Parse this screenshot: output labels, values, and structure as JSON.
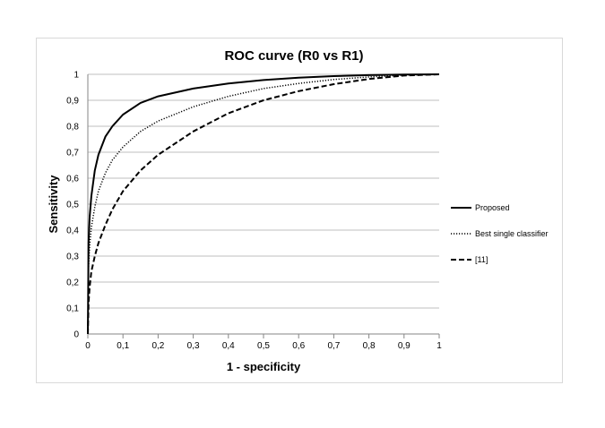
{
  "chart_data": {
    "type": "line",
    "title": "ROC curve (R0 vs R1)",
    "xlabel": "1 - specificity",
    "ylabel": "Sensitivity",
    "xlim": [
      0,
      1
    ],
    "ylim": [
      0,
      1
    ],
    "x_ticks": [
      "0",
      "0,1",
      "0,2",
      "0,3",
      "0,4",
      "0,5",
      "0,6",
      "0,7",
      "0,8",
      "0,9",
      "1"
    ],
    "y_ticks": [
      "0",
      "0,1",
      "0,2",
      "0,3",
      "0,4",
      "0,5",
      "0,6",
      "0,7",
      "0,8",
      "0,9",
      "1"
    ],
    "grid": "horizontal",
    "legend_position": "right",
    "series": [
      {
        "name": "Proposed",
        "line_style": "solid",
        "x": [
          0,
          0.002,
          0.005,
          0.01,
          0.02,
          0.03,
          0.05,
          0.07,
          0.1,
          0.15,
          0.2,
          0.3,
          0.4,
          0.5,
          0.6,
          0.7,
          0.8,
          0.9,
          1
        ],
        "y": [
          0,
          0.35,
          0.45,
          0.53,
          0.63,
          0.69,
          0.76,
          0.8,
          0.845,
          0.89,
          0.915,
          0.945,
          0.965,
          0.978,
          0.987,
          0.993,
          0.997,
          0.999,
          1
        ]
      },
      {
        "name": "Best single classifier",
        "line_style": "dotted",
        "x": [
          0,
          0.002,
          0.005,
          0.01,
          0.02,
          0.03,
          0.05,
          0.07,
          0.1,
          0.15,
          0.2,
          0.3,
          0.4,
          0.5,
          0.6,
          0.7,
          0.8,
          0.9,
          1
        ],
        "y": [
          0,
          0.26,
          0.34,
          0.41,
          0.49,
          0.55,
          0.62,
          0.67,
          0.72,
          0.78,
          0.82,
          0.875,
          0.915,
          0.945,
          0.965,
          0.98,
          0.99,
          0.997,
          1
        ]
      },
      {
        "name": "[11]",
        "line_style": "dashed",
        "x": [
          0,
          0.002,
          0.005,
          0.01,
          0.02,
          0.03,
          0.05,
          0.07,
          0.1,
          0.15,
          0.2,
          0.3,
          0.4,
          0.5,
          0.6,
          0.7,
          0.8,
          0.9,
          1
        ],
        "y": [
          0,
          0.12,
          0.18,
          0.24,
          0.3,
          0.35,
          0.42,
          0.48,
          0.55,
          0.63,
          0.69,
          0.78,
          0.85,
          0.9,
          0.935,
          0.962,
          0.982,
          0.995,
          1
        ]
      }
    ]
  }
}
